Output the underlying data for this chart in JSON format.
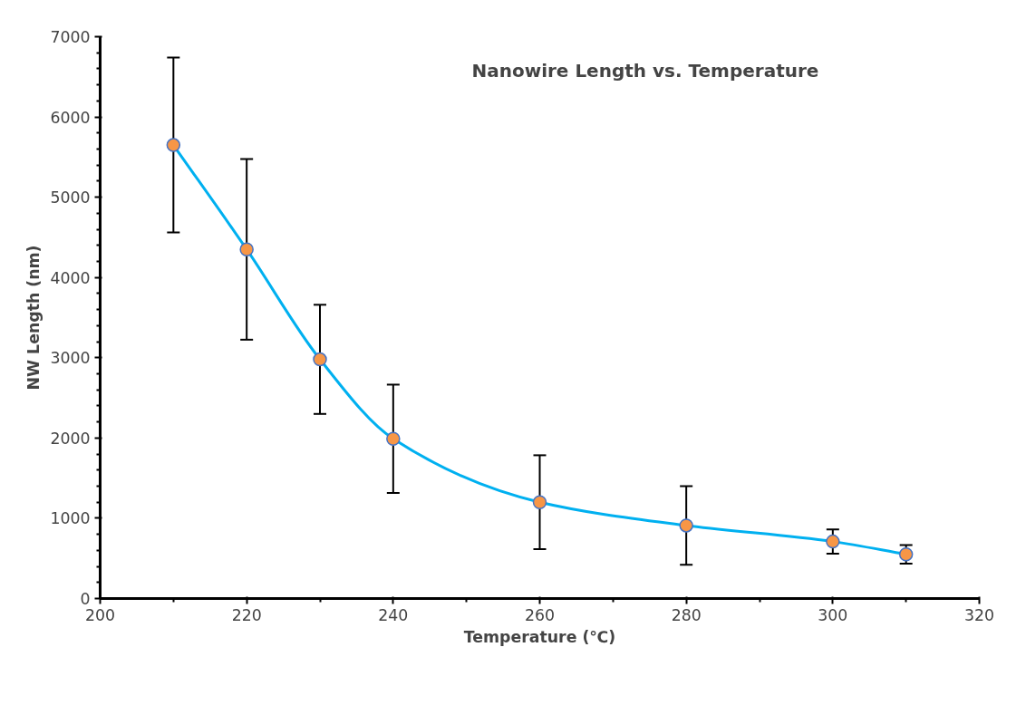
{
  "chart_data": {
    "type": "line",
    "title": "Nanowire Length vs. Temperature",
    "xlabel": "Temperature (℃)",
    "ylabel": "NW Length (nm)",
    "x": [
      210,
      220,
      230,
      240,
      260,
      280,
      300,
      310
    ],
    "series": [
      {
        "color": "#00b0f0",
        "values": [
          5650,
          4350,
          2980,
          1990,
          1200,
          910,
          710,
          550
        ],
        "errors": [
          1090,
          1125,
          680,
          675,
          585,
          490,
          150,
          115
        ]
      }
    ],
    "xlim": [
      200,
      320
    ],
    "xticks": [
      200,
      220,
      240,
      260,
      280,
      300,
      320
    ],
    "ylim": [
      0,
      7000
    ],
    "yticks": [
      0,
      1000,
      2000,
      3000,
      4000,
      5000,
      6000,
      7000
    ],
    "marker": "circle",
    "line_style": "solid",
    "grid": false
  }
}
